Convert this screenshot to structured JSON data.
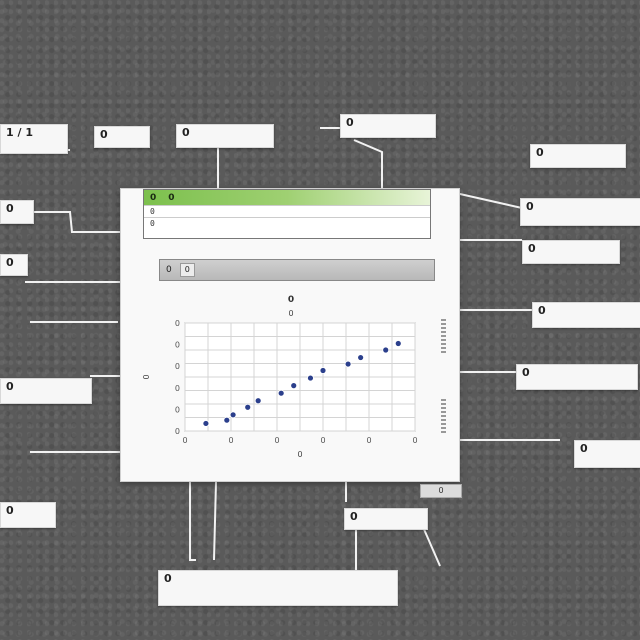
{
  "callouts": {
    "left_1": "1 / 1",
    "left_2": "0",
    "left_3": "0",
    "left_4": "0",
    "left_5": "0",
    "left_6": "0",
    "top_1": "0",
    "top_2": "0",
    "top_3": "0",
    "right_1": "0",
    "right_2": "0",
    "right_3": "0",
    "right_4": "0",
    "right_5": "0",
    "right_6": "0",
    "bottom_1": "0",
    "bottom_2": "0"
  },
  "figure": {
    "top_box": {
      "title": "0",
      "title_right": "0",
      "row_1": "0",
      "row_2": "0"
    },
    "banner": {
      "text": "0",
      "chip": "0"
    },
    "footnote": "0"
  },
  "chart_data": {
    "type": "scatter",
    "title": "0",
    "subtitle": "0",
    "xlabel": "0",
    "ylabel": "0",
    "xlim": [
      0,
      11
    ],
    "ylim": [
      0,
      10
    ],
    "x_ticks": [
      "0",
      "0",
      "0",
      "0",
      "0",
      "0"
    ],
    "y_ticks": [
      "0",
      "0",
      "0",
      "0",
      "0",
      "0"
    ],
    "grid": true,
    "series": [
      {
        "x": [
          1,
          2,
          2.3,
          3,
          3.5,
          4.6,
          5.2,
          6,
          6.6,
          7.8,
          8.4,
          9.6,
          10.2
        ],
        "y": [
          0.7,
          1.0,
          1.5,
          2.2,
          2.8,
          3.5,
          4.2,
          4.9,
          5.6,
          6.2,
          6.8,
          7.5,
          8.1
        ]
      }
    ],
    "marker_color": "#2b3f8c"
  }
}
